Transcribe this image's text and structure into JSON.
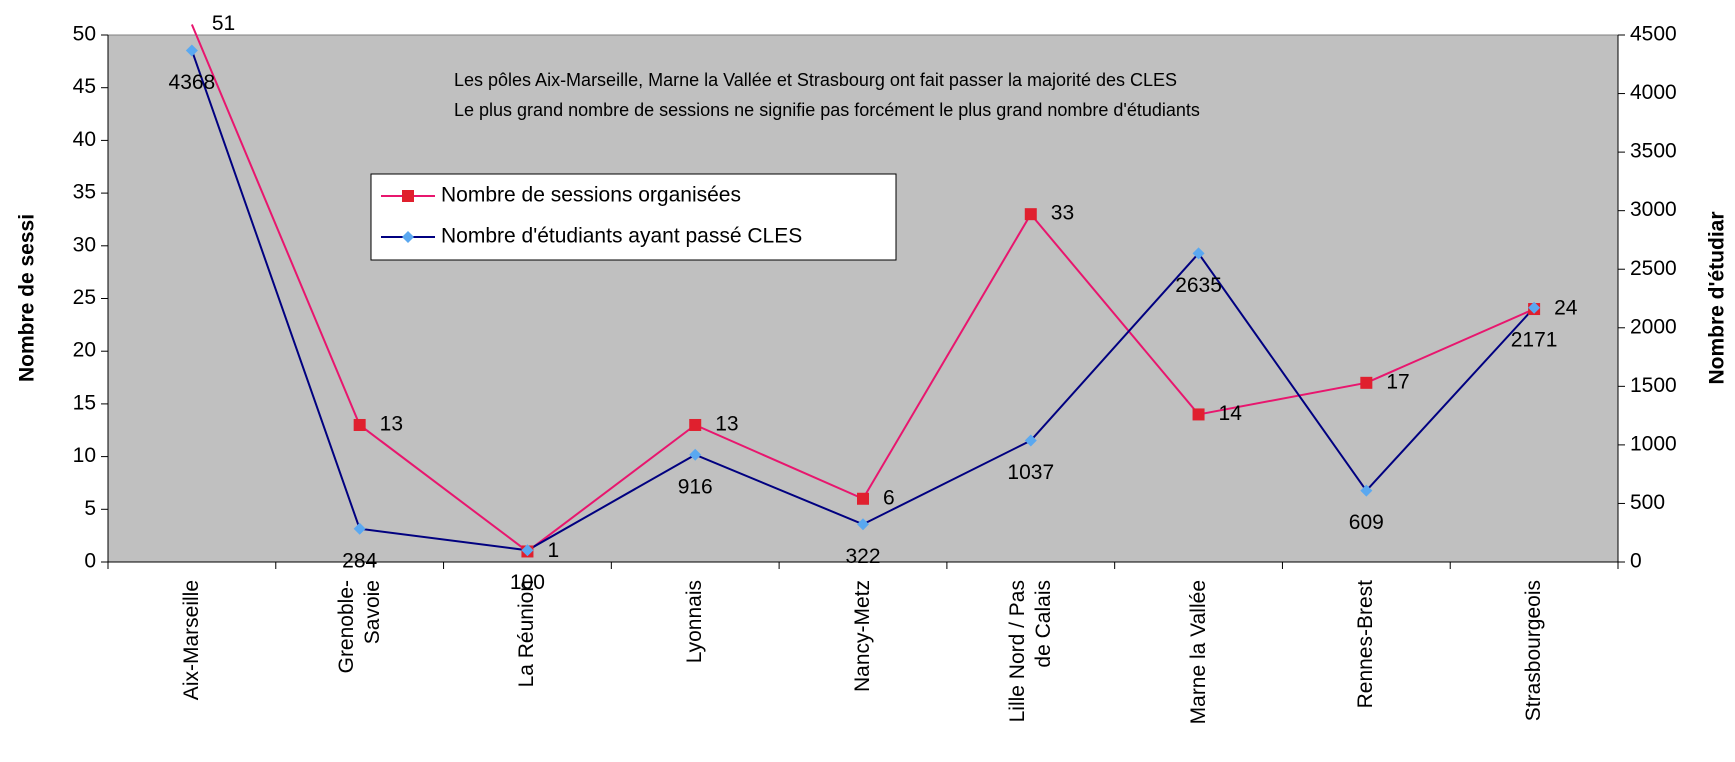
{
  "chart_data": {
    "type": "line",
    "annotations": [
      "Les pôles Aix-Marseille, Marne la Vallée et Strasbourg ont fait passer la majorité des CLES",
      "Le plus grand nombre de sessions ne signifie pas forcément le plus grand nombre d'étudiants"
    ],
    "ylabel": "Nombre de sessi",
    "y2label": "Nombre d'étudiar",
    "categories": [
      "Aix-Marseille",
      "Grenoble-Savoie",
      "La Réunion",
      "Lyonnais",
      "Nancy-Metz",
      "Lille Nord / Pas de Calais",
      "Marne la Vallée",
      "Rennes-Brest",
      "Strasbourgeois"
    ],
    "series": [
      {
        "name": "Nombre de sessions organisées",
        "color": "#e8166e",
        "marker_color": "#e0202e",
        "values": [
          51,
          13,
          1,
          13,
          6,
          33,
          14,
          17,
          24
        ]
      },
      {
        "name": "Nombre d'étudiants ayant passé CLES",
        "color": "#000080",
        "marker_color": "#5aa8f0",
        "axis": "y2",
        "values": [
          4368,
          284,
          100,
          916,
          322,
          1037,
          2635,
          609,
          2171
        ]
      }
    ],
    "ylim": [
      0,
      50
    ],
    "yticks": [
      0,
      5,
      10,
      15,
      20,
      25,
      30,
      35,
      40,
      45,
      50
    ],
    "y2lim": [
      0,
      4500
    ],
    "y2ticks": [
      0,
      500,
      1000,
      1500,
      2000,
      2500,
      3000,
      3500,
      4000,
      4500
    ],
    "plot_background": "#c0c0c0"
  }
}
